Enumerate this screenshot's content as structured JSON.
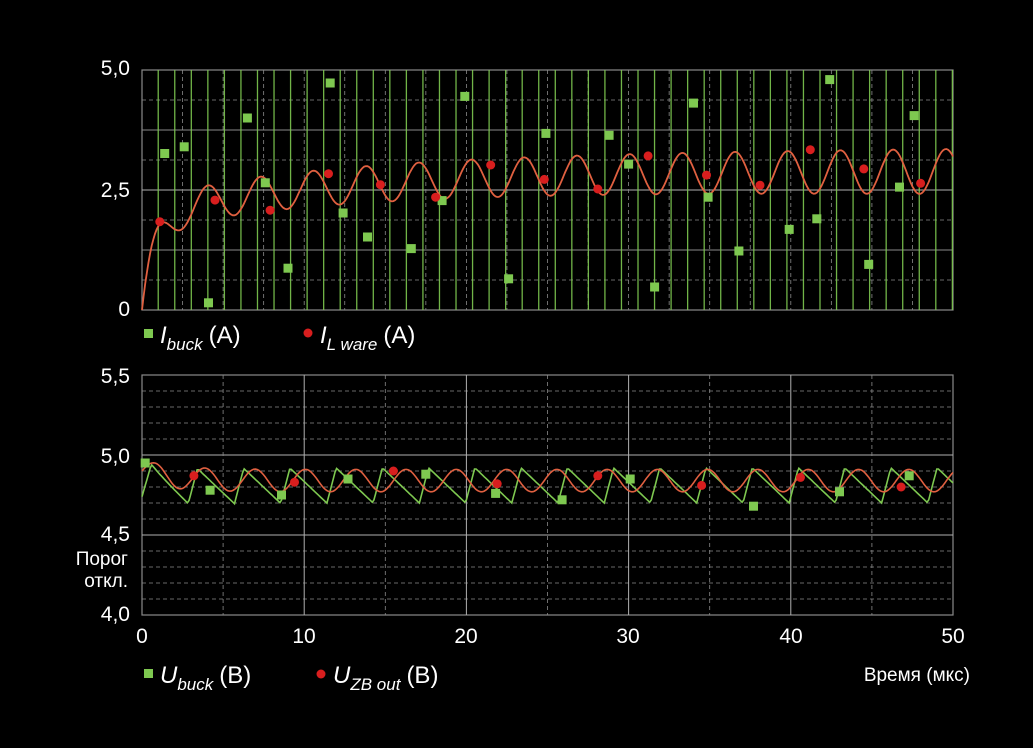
{
  "colors": {
    "background": "#000000",
    "grid": "#8a8a8a",
    "green": "#7ec850",
    "red": "#d81e1e",
    "red_line": "#e06040"
  },
  "chart_data": [
    {
      "type": "line",
      "ylim": [
        0,
        5
      ],
      "yticks": [
        "0",
        "2,5",
        "5,0"
      ],
      "xlim": [
        0,
        50
      ],
      "legend": [
        {
          "base": "I",
          "sub": "buck",
          "unit": "(A)",
          "marker": "square",
          "color": "#7ec850"
        },
        {
          "base": "I",
          "sub": "L ware",
          "unit": "(A)",
          "marker": "circle",
          "color": "#d81e1e"
        }
      ],
      "series": [
        {
          "id": "i_buck",
          "marker": "square",
          "points": [
            [
              1.4,
              3.26
            ],
            [
              2.6,
              3.4
            ],
            [
              4.1,
              0.15
            ],
            [
              6.5,
              4
            ],
            [
              7.6,
              2.65
            ],
            [
              9,
              0.87
            ],
            [
              11.6,
              4.73
            ],
            [
              12.4,
              2.02
            ],
            [
              13.9,
              1.52
            ],
            [
              16.6,
              1.28
            ],
            [
              18.5,
              2.28
            ],
            [
              19.9,
              4.45
            ],
            [
              22.6,
              0.65
            ],
            [
              24.9,
              3.68
            ],
            [
              28.8,
              3.64
            ],
            [
              30,
              3.04
            ],
            [
              31.6,
              0.48
            ],
            [
              34,
              4.31
            ],
            [
              34.9,
              2.35
            ],
            [
              36.8,
              1.23
            ],
            [
              39.9,
              1.68
            ],
            [
              41.6,
              1.9
            ],
            [
              42.4,
              4.8
            ],
            [
              44.8,
              0.95
            ],
            [
              46.7,
              2.56
            ],
            [
              47.6,
              4.05
            ]
          ]
        },
        {
          "id": "i_l_ware",
          "marker": "circle",
          "points": [
            [
              1.1,
              1.84
            ],
            [
              4.5,
              2.29
            ],
            [
              7.9,
              2.08
            ],
            [
              11.5,
              2.84
            ],
            [
              14.7,
              2.61
            ],
            [
              18.1,
              2.35
            ],
            [
              21.5,
              3.02
            ],
            [
              24.8,
              2.72
            ],
            [
              28.1,
              2.52
            ],
            [
              31.2,
              3.21
            ],
            [
              34.8,
              2.81
            ],
            [
              38.1,
              2.6
            ],
            [
              41.2,
              3.34
            ],
            [
              44.5,
              2.94
            ],
            [
              48,
              2.64
            ]
          ]
        }
      ]
    },
    {
      "type": "line",
      "ylim": [
        4,
        5.5
      ],
      "yticks": [
        "4,0",
        "4,5",
        "5,0",
        "5,5"
      ],
      "threshold_label": [
        "Порог",
        "откл."
      ],
      "xlim": [
        0,
        50
      ],
      "xticks": [
        "0",
        "10",
        "20",
        "30",
        "40",
        "50"
      ],
      "xlabel": "Время (мкс)",
      "legend": [
        {
          "base": "U",
          "sub": "buck",
          "unit": "(B)",
          "marker": "square",
          "color": "#7ec850"
        },
        {
          "base": "U",
          "sub": "ZB out",
          "unit": "(B)",
          "marker": "circle",
          "color": "#d81e1e"
        }
      ],
      "series": [
        {
          "id": "u_buck",
          "marker": "square",
          "points": [
            [
              0.2,
              4.95
            ],
            [
              4.2,
              4.78
            ],
            [
              8.6,
              4.75
            ],
            [
              12.7,
              4.85
            ],
            [
              17.5,
              4.88
            ],
            [
              21.8,
              4.76
            ],
            [
              25.9,
              4.72
            ],
            [
              30.1,
              4.85
            ],
            [
              37.7,
              4.68
            ],
            [
              43,
              4.77
            ],
            [
              47.3,
              4.87
            ]
          ]
        },
        {
          "id": "u_zb_out",
          "marker": "circle",
          "points": [
            [
              3.2,
              4.87
            ],
            [
              9.4,
              4.83
            ],
            [
              15.5,
              4.9
            ],
            [
              21.9,
              4.82
            ],
            [
              28.1,
              4.87
            ],
            [
              34.5,
              4.81
            ],
            [
              40.6,
              4.86
            ],
            [
              46.8,
              4.8
            ]
          ]
        }
      ]
    }
  ]
}
